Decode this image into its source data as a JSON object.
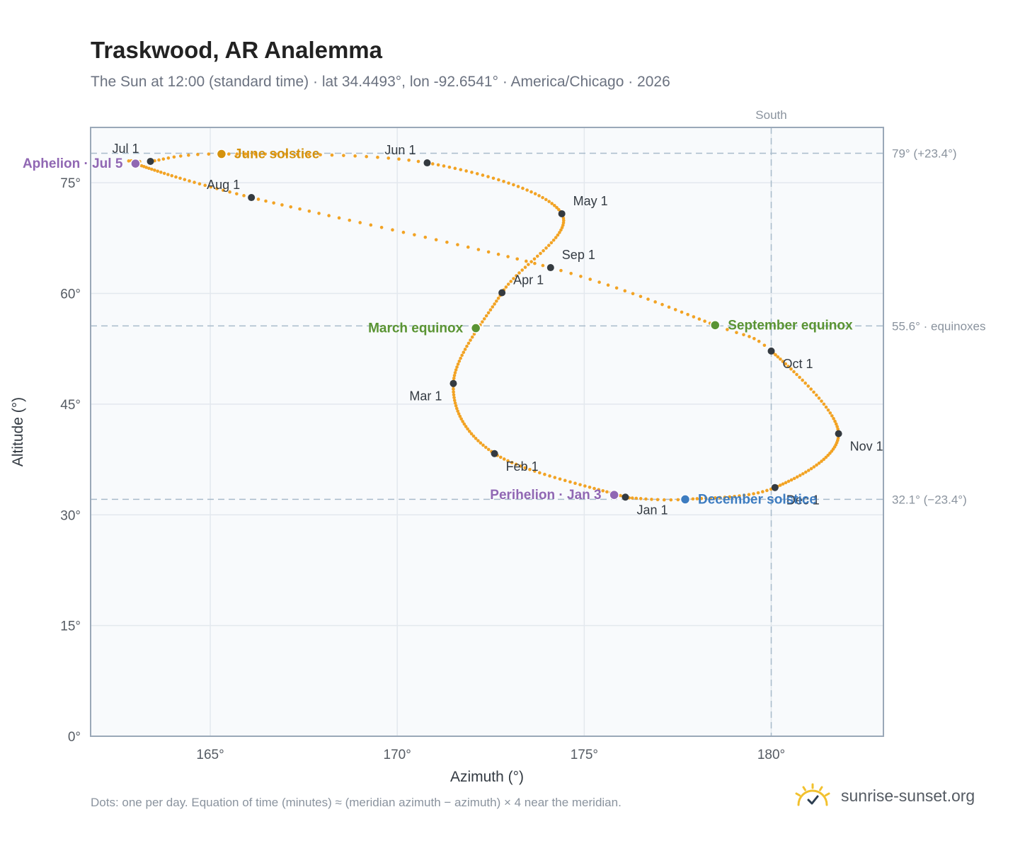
{
  "title": "Traskwood, AR Analemma",
  "subtitle": "The Sun at 12:00 (standard time) · lat 34.4493°, lon -92.6541° · America/Chicago · 2026",
  "footnote": "Dots: one per day. Equation of time (minutes) ≈ (meridian azimuth − azimuth) × 4 near the meridian.",
  "brand": {
    "name": "sunrise-sunset.org",
    "icon": "sun-logo-icon"
  },
  "colors": {
    "curve": "#f2a324",
    "month_dot": "#343a40",
    "solstice_june": "#d4920d",
    "solstice_dec": "#3d7cc0",
    "equinox": "#5a9433",
    "apsis": "#9067b3",
    "reference_line": "#a9bccb",
    "plot_bg": "#f8fafc"
  },
  "chart_data": {
    "type": "scatter",
    "xlabel": "Azimuth (°)",
    "ylabel": "Altitude (°)",
    "xlim": [
      161.8,
      183.0
    ],
    "ylim": [
      0,
      82.5
    ],
    "xticks": [
      165,
      170,
      175,
      180
    ],
    "xtick_labels": [
      "165°",
      "170°",
      "175°",
      "180°"
    ],
    "yticks": [
      0,
      15,
      30,
      45,
      60,
      75
    ],
    "ytick_labels": [
      "0°",
      "15°",
      "30°",
      "45°",
      "60°",
      "75°"
    ],
    "grid": true,
    "meridian": {
      "azimuth": 180,
      "label": "South"
    },
    "reference_lines": [
      {
        "altitude": 79.0,
        "label": "79° (+23.4°)"
      },
      {
        "altitude": 55.6,
        "label": "55.6° · equinoxes"
      },
      {
        "altitude": 32.1,
        "label": "32.1° (−23.4°)"
      }
    ],
    "daily_path": {
      "name": "Sun position, one dot per day",
      "doy_anchors": [
        1,
        32,
        60,
        91,
        121,
        152,
        172,
        182,
        186,
        213,
        244,
        266,
        274,
        305,
        335,
        355,
        365
      ],
      "azimuth": [
        176.1,
        172.6,
        171.5,
        172.8,
        174.4,
        170.8,
        165.3,
        163.4,
        163.0,
        166.1,
        174.1,
        178.5,
        180.0,
        181.8,
        180.1,
        177.7,
        176.2
      ],
      "altitude": [
        32.4,
        38.3,
        47.8,
        60.1,
        70.8,
        77.7,
        78.9,
        77.9,
        77.6,
        73.0,
        63.5,
        55.7,
        52.2,
        41.0,
        33.7,
        32.1,
        32.3
      ]
    },
    "month_markers": [
      {
        "label": "Jan 1",
        "azimuth": 176.1,
        "altitude": 32.4,
        "label_pos": "below-right"
      },
      {
        "label": "Feb 1",
        "azimuth": 172.6,
        "altitude": 38.3,
        "label_pos": "below-right"
      },
      {
        "label": "Mar 1",
        "azimuth": 171.5,
        "altitude": 47.8,
        "label_pos": "below-left"
      },
      {
        "label": "Apr 1",
        "azimuth": 172.8,
        "altitude": 60.1,
        "label_pos": "above-right"
      },
      {
        "label": "May 1",
        "azimuth": 174.4,
        "altitude": 70.8,
        "label_pos": "above-right"
      },
      {
        "label": "Jun 1",
        "azimuth": 170.8,
        "altitude": 77.7,
        "label_pos": "above-left"
      },
      {
        "label": "Jul 1",
        "azimuth": 163.4,
        "altitude": 77.9,
        "label_pos": "above-left"
      },
      {
        "label": "Aug 1",
        "azimuth": 166.1,
        "altitude": 73.0,
        "label_pos": "above-left"
      },
      {
        "label": "Sep 1",
        "azimuth": 174.1,
        "altitude": 63.5,
        "label_pos": "above-right"
      },
      {
        "label": "Oct 1",
        "azimuth": 180.0,
        "altitude": 52.2,
        "label_pos": "below-right"
      },
      {
        "label": "Nov 1",
        "azimuth": 181.8,
        "altitude": 41.0,
        "label_pos": "below-right"
      },
      {
        "label": "Dec 1",
        "azimuth": 180.1,
        "altitude": 33.7,
        "label_pos": "below-right"
      }
    ],
    "events": [
      {
        "label": "June solstice",
        "azimuth": 165.3,
        "altitude": 78.9,
        "color_key": "solstice_june",
        "label_pos": "right"
      },
      {
        "label": "December solstice",
        "azimuth": 177.7,
        "altitude": 32.1,
        "color_key": "solstice_dec",
        "label_pos": "right"
      },
      {
        "label": "March equinox",
        "azimuth": 172.1,
        "altitude": 55.3,
        "color_key": "equinox",
        "label_pos": "left"
      },
      {
        "label": "September equinox",
        "azimuth": 178.5,
        "altitude": 55.7,
        "color_key": "equinox",
        "label_pos": "right"
      },
      {
        "label": "Aphelion · Jul 5",
        "azimuth": 163.0,
        "altitude": 77.6,
        "color_key": "apsis",
        "label_pos": "left"
      },
      {
        "label": "Perihelion · Jan 3",
        "azimuth": 175.8,
        "altitude": 32.7,
        "color_key": "apsis",
        "label_pos": "left"
      }
    ]
  }
}
